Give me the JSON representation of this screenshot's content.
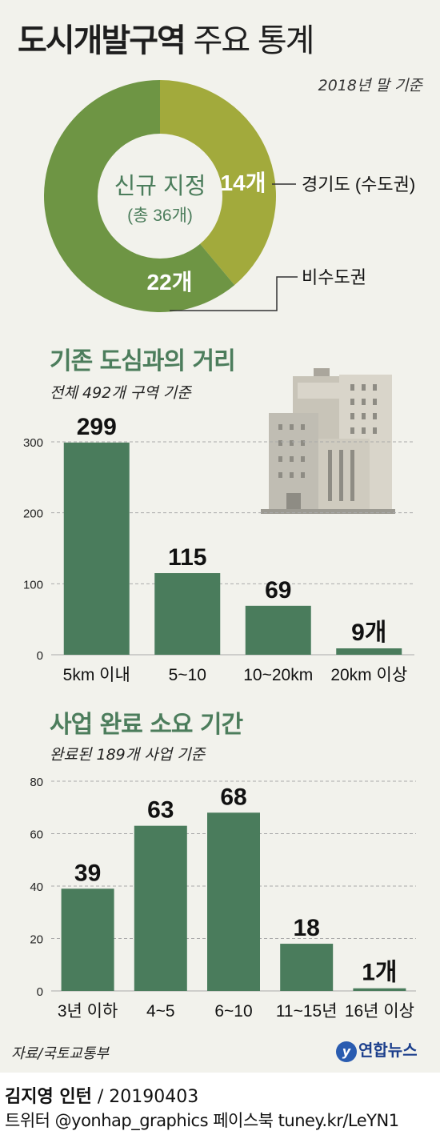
{
  "title": {
    "bold": "도시개발구역",
    "light": "주요 통계"
  },
  "basis": "2018년 말 기준",
  "donut": {
    "center_label": "신규 지정",
    "center_total": "(총 36개)",
    "capital_label": "14개",
    "noncapital_label": "22개",
    "capital_legend": "경기도 (수도권)",
    "noncapital_legend": "비수도권"
  },
  "section1": {
    "title": "기존 도심과의 거리",
    "subtitle": "전체 492개 구역 기준"
  },
  "section2": {
    "title": "사업 완료 소요 기간",
    "subtitle": "완료된 189개 사업 기준"
  },
  "source": "자료/국토교통부",
  "logo": {
    "mark": "y",
    "text": "연합뉴스"
  },
  "credit": {
    "author": "김지영 인턴",
    "date": " / 20190403"
  },
  "social": "트위터 @yonhap_graphics  페이스북 tuney.kr/LeYN1",
  "colors": {
    "panel": "#f2f2ec",
    "bar": "#4a7c5c",
    "donut_capital": "#a2aa3c",
    "donut_noncapital": "#6e9544",
    "section_title": "#4c7d5c"
  },
  "chart_data": [
    {
      "type": "pie",
      "variant": "donut",
      "title": "신규 지정",
      "categories": [
        "경기도 (수도권)",
        "비수도권"
      ],
      "values": [
        14,
        22
      ],
      "value_labels": [
        "14개",
        "22개"
      ]
    },
    {
      "type": "bar",
      "title": "기존 도심과의 거리",
      "subtitle": "전체 492개 구역 기준",
      "categories": [
        "5km 이내",
        "5~10",
        "10~20km",
        "20km 이상"
      ],
      "values": [
        299,
        115,
        69,
        9
      ],
      "value_labels": [
        "299",
        "115",
        "69",
        "9개"
      ],
      "ylim": [
        0,
        300
      ],
      "yticks": [
        0,
        100,
        200,
        300
      ],
      "grid": true
    },
    {
      "type": "bar",
      "title": "사업 완료 소요 기간",
      "subtitle": "완료된 189개 사업 기준",
      "categories": [
        "3년 이하",
        "4~5",
        "6~10",
        "11~15년",
        "16년 이상"
      ],
      "values": [
        39,
        63,
        68,
        18,
        1
      ],
      "value_labels": [
        "39",
        "63",
        "68",
        "18",
        "1개"
      ],
      "ylim": [
        0,
        80
      ],
      "yticks": [
        0,
        20,
        40,
        60,
        80
      ],
      "grid": true
    }
  ]
}
